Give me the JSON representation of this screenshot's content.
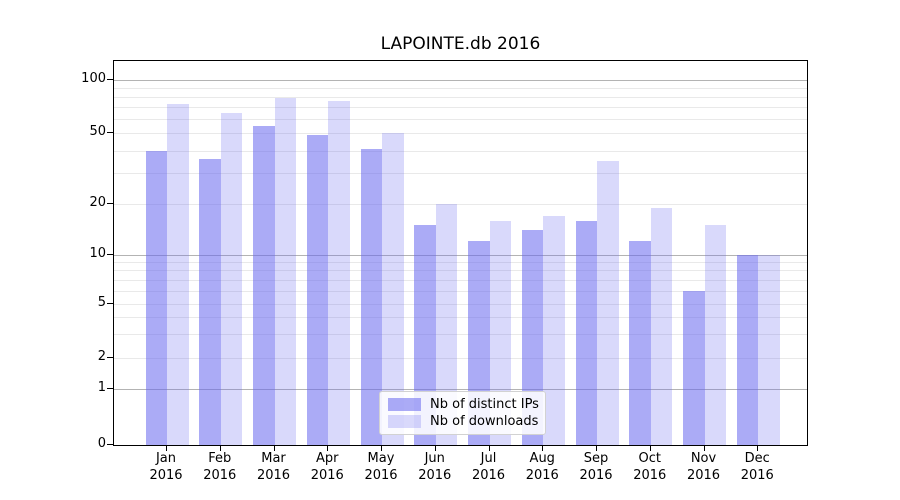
{
  "title": "LAPOINTE.db 2016",
  "chart_data": {
    "type": "bar",
    "title": "LAPOINTE.db 2016",
    "categories": [
      "Jan",
      "Feb",
      "Mar",
      "Apr",
      "May",
      "Jun",
      "Jul",
      "Aug",
      "Sep",
      "Oct",
      "Nov",
      "Dec"
    ],
    "category_year": "2016",
    "series": [
      {
        "name": "Nb of distinct IPs",
        "color": "rgba(102,102,238,0.55)",
        "values": [
          40,
          36,
          55,
          49,
          41,
          15,
          12,
          14,
          16,
          12,
          6,
          10
        ]
      },
      {
        "name": "Nb of downloads",
        "color": "rgba(102,102,238,0.25)",
        "values": [
          73,
          65,
          79,
          76,
          50,
          20,
          16,
          17,
          35,
          19,
          15,
          10
        ]
      }
    ],
    "xlabel": "",
    "ylabel": "",
    "yscale": "log-like",
    "ylim": [
      0,
      120
    ],
    "y_ticks": [
      0,
      1,
      2,
      5,
      10,
      20,
      50,
      100
    ],
    "y_gridlines_major": [
      1,
      10,
      100
    ],
    "y_gridlines_minor": [
      2,
      3,
      4,
      5,
      6,
      7,
      8,
      9,
      20,
      30,
      40,
      50,
      60,
      70,
      80,
      90
    ],
    "grid": true,
    "legend_position": "lower center",
    "colors": {
      "grid_major": "#b3b3b3",
      "grid_minor": "#e9e9e9",
      "axis": "#000000"
    }
  }
}
